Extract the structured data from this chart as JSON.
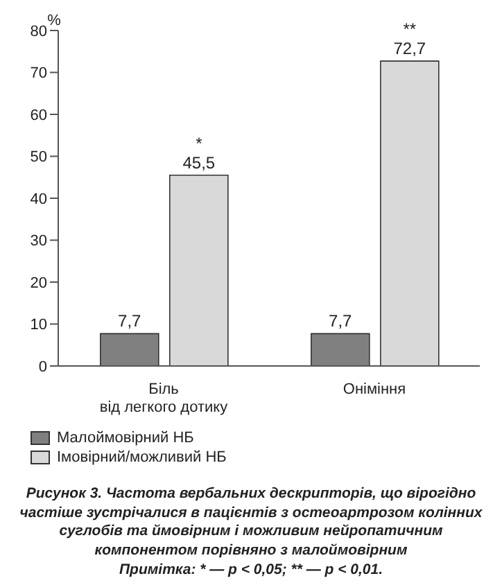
{
  "chart_data": {
    "type": "bar",
    "title": "Рисунок 3. Частота вербальних дескрипторів, що вірогідно частіше зустрічалися в пацієнтів з остеоартрозом колінних суглобів та ймовірним і можливим нейропатичним компонентом порівняно з малоймовірним",
    "ylabel": "%",
    "categories": [
      "Біль\nвід легкого дотику",
      "Оніміння"
    ],
    "series": [
      {
        "name": "Малоймовірний НБ",
        "color": "#808080",
        "values": [
          7.7,
          7.7
        ]
      },
      {
        "name": "Імовірний/можливий НБ",
        "color": "#d9d9d9",
        "values": [
          45.5,
          72.7
        ]
      }
    ],
    "value_labels": [
      [
        "7,7",
        "7,7"
      ],
      [
        "45,5",
        "72,7"
      ]
    ],
    "ylim": [
      0,
      80
    ],
    "yticks": [
      0,
      10,
      20,
      30,
      40,
      50,
      60,
      70,
      80
    ],
    "grid": false,
    "legend": "bottom left",
    "annotations": [
      {
        "text": "*",
        "x": "Біль\nвід легкого дотику",
        "y": 45.5
      },
      {
        "text": "**",
        "x": "Оніміння",
        "y": 72.7
      },
      "Примітка: * — p < 0,05; ** — p < 0,01."
    ]
  }
}
